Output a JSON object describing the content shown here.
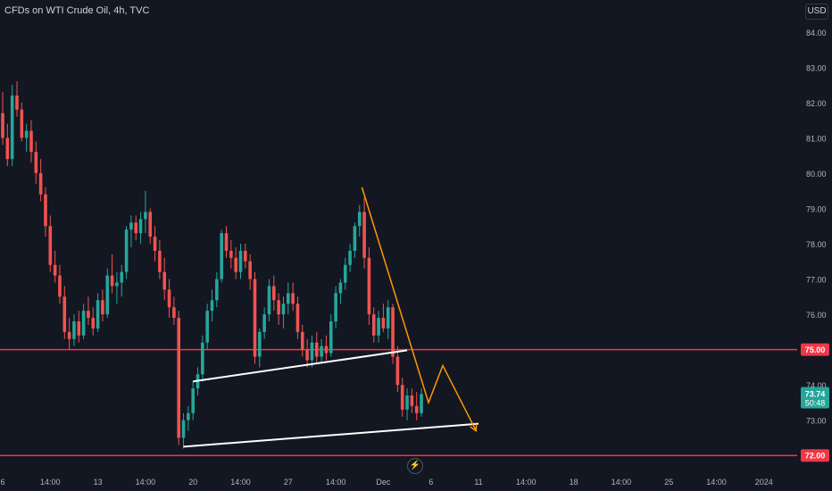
{
  "header": {
    "title": "CFDs on WTI Crude Oil, 4h, TVC",
    "currency": "USD"
  },
  "colors": {
    "background": "#131722",
    "up": "#26a69a",
    "down": "#ef5350",
    "level_line": "#f23645",
    "trend_line": "#ffffff",
    "projection": "#ff9800",
    "axis_text": "#b2b5be"
  },
  "logo_icon": "lightning-icon",
  "chart_data": {
    "type": "candlestick",
    "title": "CFDs on WTI Crude Oil, 4h, TVC",
    "ylim": [
      71.5,
      84.4
    ],
    "price_axis": [
      "84.00",
      "83.00",
      "82.00",
      "81.00",
      "80.00",
      "79.00",
      "78.00",
      "77.00",
      "76.00",
      "75.00",
      "74.00",
      "73.00",
      "72.00"
    ],
    "time_axis": [
      {
        "label": "6",
        "x": 0
      },
      {
        "label": "14:00",
        "x": 10
      },
      {
        "label": "13",
        "x": 20
      },
      {
        "label": "14:00",
        "x": 30
      },
      {
        "label": "20",
        "x": 40
      },
      {
        "label": "14:00",
        "x": 50
      },
      {
        "label": "27",
        "x": 60
      },
      {
        "label": "14:00",
        "x": 70
      },
      {
        "label": "Dec",
        "x": 80
      },
      {
        "label": "6",
        "x": 90
      },
      {
        "label": "11",
        "x": 100
      },
      {
        "label": "14:00",
        "x": 110
      },
      {
        "label": "18",
        "x": 120
      },
      {
        "label": "14:00",
        "x": 130
      },
      {
        "label": "25",
        "x": 140
      },
      {
        "label": "14:00",
        "x": 150
      },
      {
        "label": "2024",
        "x": 160
      }
    ],
    "candles": [
      [
        81.7,
        82.3,
        80.8,
        81.0
      ],
      [
        81.0,
        81.4,
        80.2,
        80.4
      ],
      [
        80.4,
        82.5,
        80.2,
        82.2
      ],
      [
        82.2,
        82.6,
        81.6,
        81.8
      ],
      [
        81.8,
        82.0,
        80.9,
        81.0
      ],
      [
        81.0,
        81.4,
        80.6,
        81.2
      ],
      [
        81.2,
        81.5,
        80.3,
        80.6
      ],
      [
        80.6,
        80.9,
        79.7,
        80.0
      ],
      [
        80.0,
        80.4,
        79.2,
        79.4
      ],
      [
        79.4,
        79.6,
        78.2,
        78.5
      ],
      [
        78.5,
        78.8,
        77.2,
        77.4
      ],
      [
        77.4,
        77.8,
        76.9,
        77.1
      ],
      [
        77.1,
        77.4,
        76.3,
        76.5
      ],
      [
        76.5,
        76.8,
        75.3,
        75.5
      ],
      [
        75.5,
        75.9,
        75.0,
        75.3
      ],
      [
        75.3,
        76.0,
        75.1,
        75.8
      ],
      [
        75.8,
        76.1,
        75.2,
        75.4
      ],
      [
        75.4,
        76.3,
        75.3,
        76.1
      ],
      [
        76.1,
        76.5,
        75.7,
        75.9
      ],
      [
        75.9,
        76.2,
        75.4,
        75.6
      ],
      [
        75.6,
        76.6,
        75.5,
        76.4
      ],
      [
        76.4,
        76.7,
        75.8,
        76.0
      ],
      [
        76.0,
        77.3,
        75.9,
        77.1
      ],
      [
        77.1,
        77.7,
        76.6,
        76.8
      ],
      [
        76.8,
        77.2,
        76.3,
        76.9
      ],
      [
        76.9,
        77.4,
        76.5,
        77.2
      ],
      [
        77.2,
        78.5,
        77.0,
        78.4
      ],
      [
        78.4,
        78.8,
        77.9,
        78.6
      ],
      [
        78.6,
        78.8,
        78.1,
        78.3
      ],
      [
        78.3,
        78.9,
        78.0,
        78.7
      ],
      [
        78.7,
        79.5,
        78.3,
        78.9
      ],
      [
        78.9,
        79.0,
        78.0,
        78.2
      ],
      [
        78.2,
        78.5,
        77.5,
        77.8
      ],
      [
        77.8,
        78.1,
        77.0,
        77.2
      ],
      [
        77.2,
        77.6,
        76.4,
        76.7
      ],
      [
        76.7,
        77.0,
        75.9,
        76.2
      ],
      [
        76.2,
        76.5,
        75.7,
        75.9
      ],
      [
        75.9,
        76.1,
        72.3,
        72.5
      ],
      [
        72.5,
        73.2,
        72.2,
        73.0
      ],
      [
        73.0,
        73.4,
        72.7,
        73.2
      ],
      [
        73.2,
        74.1,
        73.0,
        73.9
      ],
      [
        73.9,
        74.5,
        73.7,
        74.3
      ],
      [
        74.3,
        75.4,
        74.1,
        75.2
      ],
      [
        75.2,
        76.3,
        75.0,
        76.1
      ],
      [
        76.1,
        76.7,
        75.8,
        76.4
      ],
      [
        76.4,
        77.2,
        76.2,
        77.0
      ],
      [
        77.0,
        78.4,
        76.9,
        78.3
      ],
      [
        78.3,
        78.5,
        77.6,
        77.8
      ],
      [
        77.8,
        78.1,
        77.3,
        77.6
      ],
      [
        77.6,
        77.9,
        77.0,
        77.2
      ],
      [
        77.2,
        78.0,
        77.0,
        77.8
      ],
      [
        77.8,
        78.0,
        77.3,
        77.5
      ],
      [
        77.5,
        77.7,
        76.7,
        77.0
      ],
      [
        77.0,
        77.2,
        74.6,
        74.8
      ],
      [
        74.8,
        75.6,
        74.5,
        75.5
      ],
      [
        75.5,
        76.2,
        75.3,
        76.0
      ],
      [
        76.0,
        77.0,
        75.8,
        76.8
      ],
      [
        76.8,
        77.1,
        76.1,
        76.4
      ],
      [
        76.4,
        76.6,
        75.7,
        76.0
      ],
      [
        76.0,
        76.5,
        75.6,
        76.3
      ],
      [
        76.3,
        76.9,
        76.0,
        76.6
      ],
      [
        76.6,
        76.9,
        76.1,
        76.3
      ],
      [
        76.3,
        76.5,
        75.3,
        75.5
      ],
      [
        75.5,
        75.7,
        74.8,
        75.0
      ],
      [
        75.0,
        75.3,
        74.5,
        74.7
      ],
      [
        74.7,
        75.4,
        74.5,
        75.2
      ],
      [
        75.2,
        75.5,
        74.6,
        74.8
      ],
      [
        74.8,
        75.3,
        74.6,
        75.1
      ],
      [
        75.1,
        75.4,
        74.7,
        74.9
      ],
      [
        74.9,
        76.0,
        74.8,
        75.8
      ],
      [
        75.8,
        76.8,
        75.6,
        76.6
      ],
      [
        76.6,
        77.0,
        76.3,
        76.9
      ],
      [
        76.9,
        77.6,
        76.7,
        77.4
      ],
      [
        77.4,
        78.0,
        77.2,
        77.8
      ],
      [
        77.8,
        78.6,
        77.6,
        78.5
      ],
      [
        78.5,
        79.1,
        78.2,
        78.9
      ],
      [
        78.9,
        79.3,
        77.3,
        77.6
      ],
      [
        77.6,
        77.9,
        75.7,
        76.0
      ],
      [
        76.0,
        76.2,
        75.2,
        75.4
      ],
      [
        75.4,
        76.1,
        75.2,
        75.9
      ],
      [
        75.9,
        76.3,
        75.5,
        75.6
      ],
      [
        75.6,
        76.4,
        75.3,
        76.2
      ],
      [
        76.2,
        76.3,
        74.6,
        74.8
      ],
      [
        74.8,
        75.1,
        73.8,
        74.0
      ],
      [
        74.0,
        74.2,
        73.1,
        73.3
      ],
      [
        73.3,
        73.9,
        73.0,
        73.7
      ],
      [
        73.7,
        73.9,
        73.2,
        73.4
      ],
      [
        73.4,
        73.8,
        73.0,
        73.2
      ],
      [
        73.2,
        73.9,
        73.1,
        73.74
      ]
    ],
    "horizontal_levels": [
      {
        "price": 75.0,
        "label": "75.00"
      },
      {
        "price": 72.0,
        "label": "72.00"
      }
    ],
    "trend_lines": [
      {
        "from": [
          38,
          72.25
        ],
        "to": [
          100,
          72.9
        ]
      },
      {
        "from": [
          40,
          74.1
        ],
        "to": [
          85,
          74.98
        ]
      }
    ],
    "projection": [
      [
        75.5,
        79.6
      ],
      [
        89.5,
        73.5
      ],
      [
        92.5,
        74.55
      ],
      [
        99.5,
        72.7
      ]
    ],
    "last_price": {
      "value": 73.74,
      "label": "73.74",
      "countdown": "50:48"
    }
  }
}
